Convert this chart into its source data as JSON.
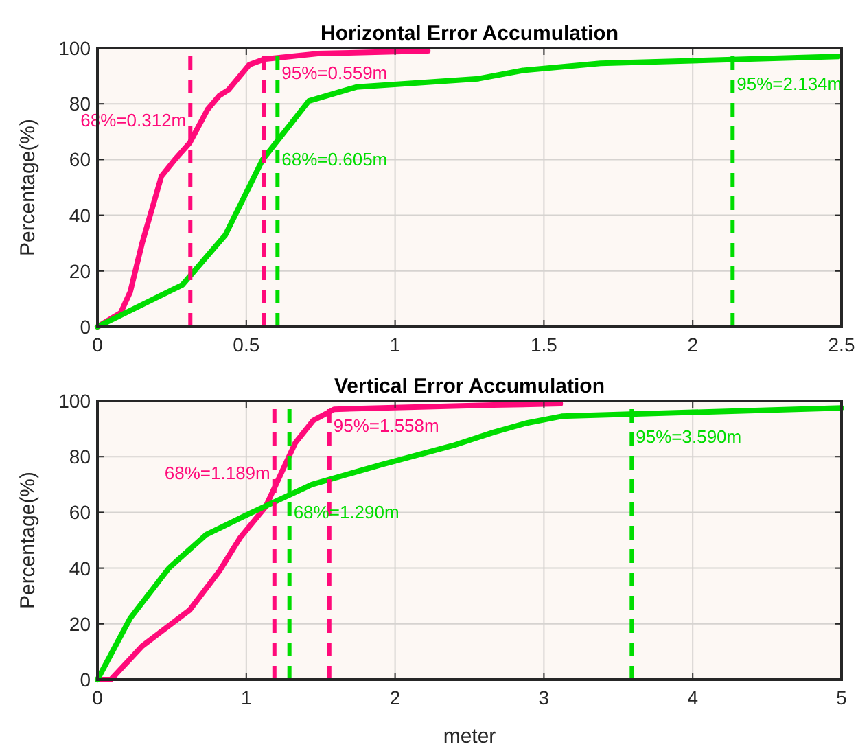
{
  "chart_data": [
    {
      "type": "line",
      "title": "Horizontal Error Accumulation",
      "ylabel": "Percentage(%)",
      "xlim": [
        0,
        2.5
      ],
      "xticks": [
        0,
        0.5,
        1,
        1.5,
        2,
        2.5
      ],
      "ylim": [
        0,
        100
      ],
      "yticks": [
        0,
        20,
        40,
        60,
        80,
        100
      ],
      "grid": true,
      "line_style": "solid",
      "marker": "none",
      "series": [
        {
          "color": "#ff0a7a",
          "x": [
            0,
            0.078,
            0.11,
            0.15,
            0.215,
            0.26,
            0.31,
            0.37,
            0.41,
            0.44,
            0.51,
            0.56,
            0.74,
            1.11
          ],
          "values": [
            0,
            5,
            12.5,
            30,
            54,
            60,
            66,
            78,
            83,
            85,
            94,
            96,
            98,
            99
          ]
        },
        {
          "color": "#00dd00",
          "x": [
            0,
            0.285,
            0.43,
            0.555,
            0.71,
            0.87,
            1.28,
            1.43,
            1.69,
            2.49
          ],
          "values": [
            0,
            15,
            33,
            60,
            81,
            86,
            89,
            92,
            94.5,
            97
          ]
        }
      ],
      "ref_lines": [
        {
          "axis": "x",
          "value": 0.312,
          "label": "68%=0.312m",
          "color": "#ff0a7a",
          "line_style": "dashed"
        },
        {
          "axis": "x",
          "value": 0.559,
          "label": "95%=0.559m",
          "color": "#ff0a7a",
          "line_style": "dashed"
        },
        {
          "axis": "x",
          "value": 0.605,
          "label": "68%=0.605m",
          "color": "#00dd00",
          "line_style": "dashed"
        },
        {
          "axis": "x",
          "value": 2.134,
          "label": "95%=2.134m",
          "color": "#00dd00",
          "line_style": "dashed"
        }
      ]
    },
    {
      "type": "line",
      "title": "Vertical Error Accumulation",
      "xlabel": "meter",
      "ylabel": "Percentage(%)",
      "xlim": [
        0,
        5
      ],
      "xticks": [
        0,
        1,
        2,
        3,
        4,
        5
      ],
      "ylim": [
        0,
        100
      ],
      "yticks": [
        0,
        20,
        40,
        60,
        80,
        100
      ],
      "grid": true,
      "line_style": "solid",
      "marker": "none",
      "series": [
        {
          "color": "#ff0a7a",
          "x": [
            0,
            0.09,
            0.3,
            0.62,
            0.82,
            0.96,
            1.13,
            1.33,
            1.45,
            1.59,
            2.66,
            3.11
          ],
          "values": [
            0,
            0,
            12,
            25,
            39,
            51,
            62,
            85,
            93,
            97,
            98.5,
            99
          ]
        },
        {
          "color": "#00dd00",
          "x": [
            0,
            0.22,
            0.48,
            0.73,
            1.0,
            1.44,
            1.9,
            2.39,
            2.66,
            2.88,
            3.12,
            5
          ],
          "values": [
            0,
            22,
            40,
            52,
            59,
            70,
            77,
            84,
            88.7,
            92,
            94.5,
            97.5
          ]
        }
      ],
      "ref_lines": [
        {
          "axis": "x",
          "value": 1.189,
          "label": "68%=1.189m",
          "color": "#ff0a7a",
          "line_style": "dashed"
        },
        {
          "axis": "x",
          "value": 1.558,
          "label": "95%=1.558m",
          "color": "#ff0a7a",
          "line_style": "dashed"
        },
        {
          "axis": "x",
          "value": 1.29,
          "label": "68%=1.290m",
          "color": "#00dd00",
          "line_style": "dashed"
        },
        {
          "axis": "x",
          "value": 3.59,
          "label": "95%=3.590m",
          "color": "#00dd00",
          "line_style": "dashed"
        }
      ]
    }
  ]
}
